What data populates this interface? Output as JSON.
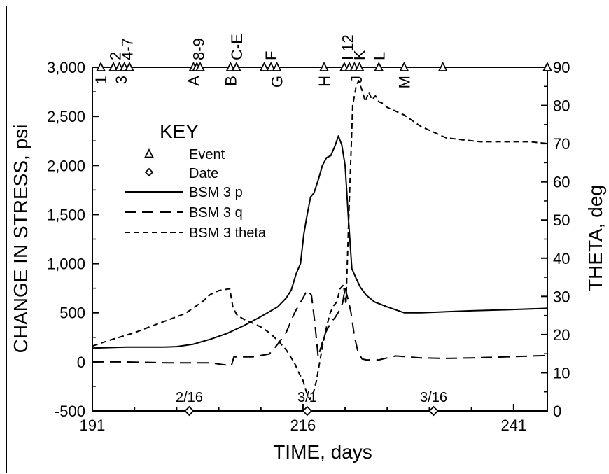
{
  "chart_data": {
    "type": "line",
    "xlabel": "TIME, days",
    "ylabel": "CHANGE IN STRESS, psi",
    "y2label": "THETA, deg",
    "xlim": [
      191,
      245
    ],
    "ylim": [
      -500,
      3000
    ],
    "y2lim": [
      0,
      90
    ],
    "xticks": [
      191,
      216,
      241
    ],
    "yticks": [
      -500,
      0,
      500,
      1000,
      1500,
      2000,
      2500,
      3000
    ],
    "ytick_labels": [
      "-500",
      "0",
      "500",
      "1,000",
      "1,500",
      "2,000",
      "2,500",
      "3,000"
    ],
    "y2ticks": [
      0,
      10,
      20,
      30,
      40,
      50,
      60,
      70,
      80,
      90
    ],
    "grid": false,
    "legend": {
      "title": "KEY",
      "placement": "upper-left",
      "entries": [
        {
          "label": "Event",
          "marker": "triangle"
        },
        {
          "label": "Date",
          "marker": "diamond"
        },
        {
          "label": "BSM 3 p",
          "style": "solid"
        },
        {
          "label": "BSM 3 q",
          "style": "long-dash"
        },
        {
          "label": "BSM 3 theta",
          "style": "short-dash"
        }
      ]
    },
    "events": {
      "markers_x": [
        192,
        193.5,
        194.2,
        194.8,
        195.4,
        203,
        203.4,
        203.8,
        207.4,
        208.1,
        211.4,
        212.2,
        212.9,
        218.5,
        220.9,
        221.5,
        222.1,
        222.7,
        225,
        228,
        232.6,
        245
      ],
      "labels": [
        {
          "text": "1",
          "x": 192,
          "pos": "below"
        },
        {
          "text": "2",
          "x": 193.7,
          "pos": "above"
        },
        {
          "text": "3",
          "x": 194.4,
          "pos": "below"
        },
        {
          "text": "4-7",
          "x": 195.1,
          "pos": "above"
        },
        {
          "text": "A",
          "x": 203,
          "pos": "below"
        },
        {
          "text": "8-9",
          "x": 203.6,
          "pos": "above"
        },
        {
          "text": "B",
          "x": 207.4,
          "pos": "below"
        },
        {
          "text": "C-E",
          "x": 208.1,
          "pos": "above"
        },
        {
          "text": "F",
          "x": 212.2,
          "pos": "above"
        },
        {
          "text": "G",
          "x": 212.9,
          "pos": "below"
        },
        {
          "text": "H",
          "x": 218.5,
          "pos": "below"
        },
        {
          "text": "I 12",
          "x": 221.3,
          "pos": "above"
        },
        {
          "text": "J",
          "x": 222.3,
          "pos": "below"
        },
        {
          "text": "K",
          "x": 222.7,
          "pos": "above"
        },
        {
          "text": "L",
          "x": 225,
          "pos": "above"
        },
        {
          "text": "M",
          "x": 228,
          "pos": "below"
        }
      ]
    },
    "dates": [
      {
        "label": "2/16",
        "x": 202.5
      },
      {
        "label": "3/1",
        "x": 216.5
      },
      {
        "label": "3/16",
        "x": 231.5
      }
    ],
    "series": [
      {
        "name": "BSM 3 p",
        "style": "solid",
        "axis": "left",
        "x": [
          191,
          193,
          195,
          197,
          198.5,
          199.5,
          201,
          203,
          205,
          207,
          209,
          211,
          213,
          214,
          214.6,
          215.2,
          215.7,
          216.1,
          216.5,
          216.9,
          217.3,
          217.8,
          218.3,
          218.8,
          219.3,
          219.8,
          220.2,
          220.6,
          221,
          221.4,
          221.8,
          222.3,
          222.8,
          223.5,
          224.5,
          226,
          228,
          230,
          233,
          236,
          240,
          245
        ],
        "y": [
          140,
          145,
          150,
          150,
          150,
          150,
          155,
          180,
          230,
          290,
          370,
          460,
          560,
          650,
          730,
          900,
          1000,
          1300,
          1500,
          1680,
          1720,
          1850,
          2000,
          2080,
          2100,
          2200,
          2300,
          2210,
          2000,
          1450,
          950,
          850,
          760,
          680,
          610,
          560,
          500,
          500,
          510,
          520,
          530,
          545
        ]
      },
      {
        "name": "BSM 3 q",
        "style": "long-dash",
        "axis": "left",
        "x": [
          191,
          195,
          200,
          205,
          207.5,
          207.8,
          210,
          212,
          213,
          214,
          215,
          216,
          216.5,
          217,
          217.4,
          217.8,
          218.3,
          218.7,
          219.3,
          219.8,
          220.3,
          220.7,
          221,
          221.4,
          221.7,
          222.1,
          222.5,
          223,
          223.5,
          224,
          225,
          226,
          227,
          230,
          233,
          236,
          240,
          245
        ],
        "y": [
          0,
          0,
          -10,
          -10,
          -40,
          50,
          50,
          80,
          180,
          300,
          500,
          650,
          730,
          680,
          400,
          50,
          200,
          300,
          400,
          450,
          520,
          600,
          750,
          620,
          500,
          260,
          110,
          30,
          20,
          20,
          20,
          40,
          60,
          40,
          35,
          40,
          50,
          65
        ]
      },
      {
        "name": "BSM 3 theta",
        "style": "short-dash",
        "axis": "right",
        "x": [
          191,
          193,
          196,
          199,
          202,
          204,
          205,
          206,
          207.3,
          207.7,
          208.2,
          209,
          210,
          211,
          212,
          213,
          214,
          215,
          215.5,
          216,
          216.4,
          216.8,
          217.2,
          217.6,
          218,
          218.4,
          218.8,
          219.2,
          219.6,
          220,
          220.4,
          220.8,
          221.1,
          221.5,
          221.9,
          222.3,
          222.6,
          223,
          223.4,
          223.8,
          224.2,
          224.6,
          225,
          225.5,
          226,
          227,
          228,
          229,
          230,
          231,
          232,
          233,
          235,
          237,
          239,
          241,
          243,
          245
        ],
        "y": [
          17,
          18.5,
          20.5,
          23,
          25.5,
          28.5,
          30.5,
          31.5,
          32,
          27,
          25,
          24,
          23,
          22,
          20.5,
          18.5,
          16,
          12.5,
          10,
          8,
          5,
          3,
          4.5,
          8,
          13,
          18,
          22,
          25.5,
          27.5,
          28.5,
          32,
          33,
          28,
          55,
          80,
          85,
          86.5,
          84,
          81,
          83.5,
          81.5,
          82.5,
          81,
          80.5,
          79.5,
          78.5,
          77.5,
          76,
          74.5,
          73.5,
          72.5,
          71.5,
          71,
          70.5,
          70.5,
          70.5,
          70.5,
          70
        ]
      }
    ]
  }
}
